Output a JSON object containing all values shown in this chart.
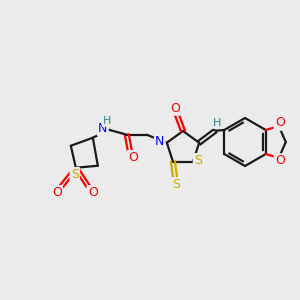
{
  "background_color": "#ebebeb",
  "bond_color": "#1a1a1a",
  "figsize": [
    3.0,
    3.0
  ],
  "dpi": 100,
  "atom_colors": {
    "O": "#ff0000",
    "S": "#ccaa00",
    "N": "#0000ff",
    "H": "#2a8888",
    "C": "#1a1a1a"
  }
}
